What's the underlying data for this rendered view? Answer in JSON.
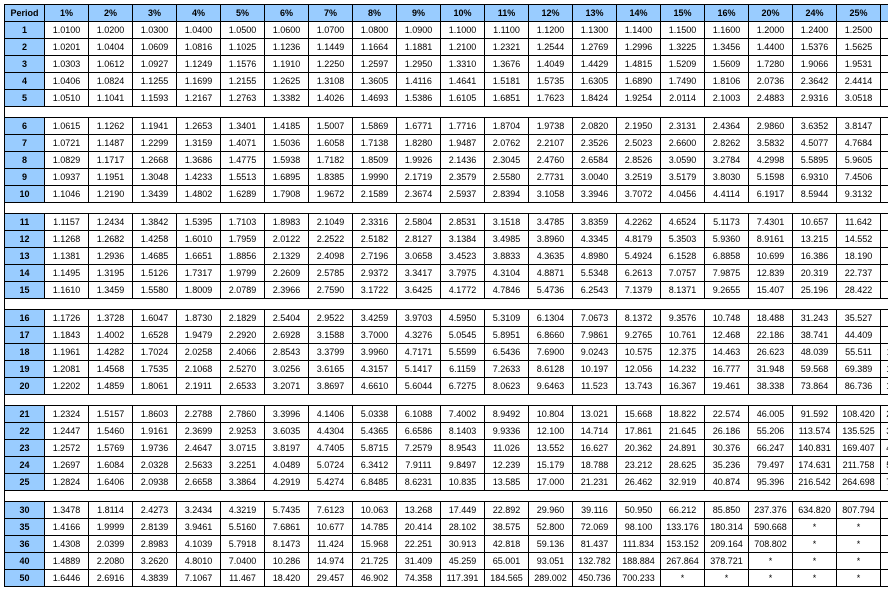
{
  "table": {
    "type": "table",
    "header_bg": "#99ccff",
    "cell_bg": "#ffffff",
    "border_color": "#000000",
    "font_size": 9,
    "period_label": "Period",
    "columns": [
      "1%",
      "2%",
      "3%",
      "4%",
      "5%",
      "6%",
      "7%",
      "8%",
      "9%",
      "10%",
      "11%",
      "12%",
      "13%",
      "14%",
      "15%",
      "16%",
      "20%",
      "24%",
      "25%",
      "30%"
    ],
    "groups": [
      {
        "rows": [
          {
            "p": "1",
            "v": [
              "1.0100",
              "1.0200",
              "1.0300",
              "1.0400",
              "1.0500",
              "1.0600",
              "1.0700",
              "1.0800",
              "1.0900",
              "1.1000",
              "1.1100",
              "1.1200",
              "1.1300",
              "1.1400",
              "1.1500",
              "1.1600",
              "1.2000",
              "1.2400",
              "1.2500",
              "1.3000"
            ]
          },
          {
            "p": "2",
            "v": [
              "1.0201",
              "1.0404",
              "1.0609",
              "1.0816",
              "1.1025",
              "1.1236",
              "1.1449",
              "1.1664",
              "1.1881",
              "1.2100",
              "1.2321",
              "1.2544",
              "1.2769",
              "1.2996",
              "1.3225",
              "1.3456",
              "1.4400",
              "1.5376",
              "1.5625",
              "1.6900"
            ]
          },
          {
            "p": "3",
            "v": [
              "1.0303",
              "1.0612",
              "1.0927",
              "1.1249",
              "1.1576",
              "1.1910",
              "1.2250",
              "1.2597",
              "1.2950",
              "1.3310",
              "1.3676",
              "1.4049",
              "1.4429",
              "1.4815",
              "1.5209",
              "1.5609",
              "1.7280",
              "1.9066",
              "1.9531",
              "2.1970"
            ]
          },
          {
            "p": "4",
            "v": [
              "1.0406",
              "1.0824",
              "1.1255",
              "1.1699",
              "1.2155",
              "1.2625",
              "1.3108",
              "1.3605",
              "1.4116",
              "1.4641",
              "1.5181",
              "1.5735",
              "1.6305",
              "1.6890",
              "1.7490",
              "1.8106",
              "2.0736",
              "2.3642",
              "2.4414",
              "2.8561"
            ]
          },
          {
            "p": "5",
            "v": [
              "1.0510",
              "1.1041",
              "1.1593",
              "1.2167",
              "1.2763",
              "1.3382",
              "1.4026",
              "1.4693",
              "1.5386",
              "1.6105",
              "1.6851",
              "1.7623",
              "1.8424",
              "1.9254",
              "2.0114",
              "2.1003",
              "2.4883",
              "2.9316",
              "3.0518",
              "3.7129"
            ]
          }
        ]
      },
      {
        "rows": [
          {
            "p": "6",
            "v": [
              "1.0615",
              "1.1262",
              "1.1941",
              "1.2653",
              "1.3401",
              "1.4185",
              "1.5007",
              "1.5869",
              "1.6771",
              "1.7716",
              "1.8704",
              "1.9738",
              "2.0820",
              "2.1950",
              "2.3131",
              "2.4364",
              "2.9860",
              "3.6352",
              "3.8147",
              "4.8268"
            ]
          },
          {
            "p": "7",
            "v": [
              "1.0721",
              "1.1487",
              "1.2299",
              "1.3159",
              "1.4071",
              "1.5036",
              "1.6058",
              "1.7138",
              "1.8280",
              "1.9487",
              "2.0762",
              "2.2107",
              "2.3526",
              "2.5023",
              "2.6600",
              "2.8262",
              "3.5832",
              "4.5077",
              "4.7684",
              "6.2749"
            ]
          },
          {
            "p": "8",
            "v": [
              "1.0829",
              "1.1717",
              "1.2668",
              "1.3686",
              "1.4775",
              "1.5938",
              "1.7182",
              "1.8509",
              "1.9926",
              "2.1436",
              "2.3045",
              "2.4760",
              "2.6584",
              "2.8526",
              "3.0590",
              "3.2784",
              "4.2998",
              "5.5895",
              "5.9605",
              "8.1573"
            ]
          },
          {
            "p": "9",
            "v": [
              "1.0937",
              "1.1951",
              "1.3048",
              "1.4233",
              "1.5513",
              "1.6895",
              "1.8385",
              "1.9990",
              "2.1719",
              "2.3579",
              "2.5580",
              "2.7731",
              "3.0040",
              "3.2519",
              "3.5179",
              "3.8030",
              "5.1598",
              "6.9310",
              "7.4506",
              "10.604"
            ]
          },
          {
            "p": "10",
            "v": [
              "1.1046",
              "1.2190",
              "1.3439",
              "1.4802",
              "1.6289",
              "1.7908",
              "1.9672",
              "2.1589",
              "2.3674",
              "2.5937",
              "2.8394",
              "3.1058",
              "3.3946",
              "3.7072",
              "4.0456",
              "4.4114",
              "6.1917",
              "8.5944",
              "9.3132",
              "13.786"
            ]
          }
        ]
      },
      {
        "rows": [
          {
            "p": "11",
            "v": [
              "1.1157",
              "1.2434",
              "1.3842",
              "1.5395",
              "1.7103",
              "1.8983",
              "2.1049",
              "2.3316",
              "2.5804",
              "2.8531",
              "3.1518",
              "3.4785",
              "3.8359",
              "4.2262",
              "4.6524",
              "5.1173",
              "7.4301",
              "10.657",
              "11.642",
              "17.922"
            ]
          },
          {
            "p": "12",
            "v": [
              "1.1268",
              "1.2682",
              "1.4258",
              "1.6010",
              "1.7959",
              "2.0122",
              "2.2522",
              "2.5182",
              "2.8127",
              "3.1384",
              "3.4985",
              "3.8960",
              "4.3345",
              "4.8179",
              "5.3503",
              "5.9360",
              "8.9161",
              "13.215",
              "14.552",
              "23.298"
            ]
          },
          {
            "p": "13",
            "v": [
              "1.1381",
              "1.2936",
              "1.4685",
              "1.6651",
              "1.8856",
              "2.1329",
              "2.4098",
              "2.7196",
              "3.0658",
              "3.4523",
              "3.8833",
              "4.3635",
              "4.8980",
              "5.4924",
              "6.1528",
              "6.8858",
              "10.699",
              "16.386",
              "18.190",
              "30.288"
            ]
          },
          {
            "p": "14",
            "v": [
              "1.1495",
              "1.3195",
              "1.5126",
              "1.7317",
              "1.9799",
              "2.2609",
              "2.5785",
              "2.9372",
              "3.3417",
              "3.7975",
              "4.3104",
              "4.8871",
              "5.5348",
              "6.2613",
              "7.0757",
              "7.9875",
              "12.839",
              "20.319",
              "22.737",
              "39.374"
            ]
          },
          {
            "p": "15",
            "v": [
              "1.1610",
              "1.3459",
              "1.5580",
              "1.8009",
              "2.0789",
              "2.3966",
              "2.7590",
              "3.1722",
              "3.6425",
              "4.1772",
              "4.7846",
              "5.4736",
              "6.2543",
              "7.1379",
              "8.1371",
              "9.2655",
              "15.407",
              "25.196",
              "28.422",
              "51.186"
            ]
          }
        ]
      },
      {
        "rows": [
          {
            "p": "16",
            "v": [
              "1.1726",
              "1.3728",
              "1.6047",
              "1.8730",
              "2.1829",
              "2.5404",
              "2.9522",
              "3.4259",
              "3.9703",
              "4.5950",
              "5.3109",
              "6.1304",
              "7.0673",
              "8.1372",
              "9.3576",
              "10.748",
              "18.488",
              "31.243",
              "35.527",
              "66.542"
            ]
          },
          {
            "p": "17",
            "v": [
              "1.1843",
              "1.4002",
              "1.6528",
              "1.9479",
              "2.2920",
              "2.6928",
              "3.1588",
              "3.7000",
              "4.3276",
              "5.0545",
              "5.8951",
              "6.8660",
              "7.9861",
              "9.2765",
              "10.761",
              "12.468",
              "22.186",
              "38.741",
              "44.409",
              "86.504"
            ]
          },
          {
            "p": "18",
            "v": [
              "1.1961",
              "1.4282",
              "1.7024",
              "2.0258",
              "2.4066",
              "2.8543",
              "3.3799",
              "3.9960",
              "4.7171",
              "5.5599",
              "6.5436",
              "7.6900",
              "9.0243",
              "10.575",
              "12.375",
              "14.463",
              "26.623",
              "48.039",
              "55.511",
              "112.455"
            ]
          },
          {
            "p": "19",
            "v": [
              "1.2081",
              "1.4568",
              "1.7535",
              "2.1068",
              "2.5270",
              "3.0256",
              "3.6165",
              "4.3157",
              "5.1417",
              "6.1159",
              "7.2633",
              "8.6128",
              "10.197",
              "12.056",
              "14.232",
              "16.777",
              "31.948",
              "59.568",
              "69.389",
              "146.192"
            ]
          },
          {
            "p": "20",
            "v": [
              "1.2202",
              "1.4859",
              "1.8061",
              "2.1911",
              "2.6533",
              "3.2071",
              "3.8697",
              "4.6610",
              "5.6044",
              "6.7275",
              "8.0623",
              "9.6463",
              "11.523",
              "13.743",
              "16.367",
              "19.461",
              "38.338",
              "73.864",
              "86.736",
              "190.050"
            ]
          }
        ]
      },
      {
        "rows": [
          {
            "p": "21",
            "v": [
              "1.2324",
              "1.5157",
              "1.8603",
              "2.2788",
              "2.7860",
              "3.3996",
              "4.1406",
              "5.0338",
              "6.1088",
              "7.4002",
              "8.9492",
              "10.804",
              "13.021",
              "15.668",
              "18.822",
              "22.574",
              "46.005",
              "91.592",
              "108.420",
              "247.065"
            ]
          },
          {
            "p": "22",
            "v": [
              "1.2447",
              "1.5460",
              "1.9161",
              "2.3699",
              "2.9253",
              "3.6035",
              "4.4304",
              "5.4365",
              "6.6586",
              "8.1403",
              "9.9336",
              "12.100",
              "14.714",
              "17.861",
              "21.645",
              "26.186",
              "55.206",
              "113.574",
              "135.525",
              "321.184"
            ]
          },
          {
            "p": "23",
            "v": [
              "1.2572",
              "1.5769",
              "1.9736",
              "2.4647",
              "3.0715",
              "3.8197",
              "4.7405",
              "5.8715",
              "7.2579",
              "8.9543",
              "11.026",
              "13.552",
              "16.627",
              "20.362",
              "24.891",
              "30.376",
              "66.247",
              "140.831",
              "169.407",
              "417.539"
            ]
          },
          {
            "p": "24",
            "v": [
              "1.2697",
              "1.6084",
              "2.0328",
              "2.5633",
              "3.2251",
              "4.0489",
              "5.0724",
              "6.3412",
              "7.9111",
              "9.8497",
              "12.239",
              "15.179",
              "18.788",
              "23.212",
              "28.625",
              "35.236",
              "79.497",
              "174.631",
              "211.758",
              "542.801"
            ]
          },
          {
            "p": "25",
            "v": [
              "1.2824",
              "1.6406",
              "2.0938",
              "2.6658",
              "3.3864",
              "4.2919",
              "5.4274",
              "6.8485",
              "8.6231",
              "10.835",
              "13.585",
              "17.000",
              "21.231",
              "26.462",
              "32.919",
              "40.874",
              "95.396",
              "216.542",
              "264.698",
              "705.641"
            ]
          }
        ]
      },
      {
        "rows": [
          {
            "p": "30",
            "v": [
              "1.3478",
              "1.8114",
              "2.4273",
              "3.2434",
              "4.3219",
              "5.7435",
              "7.6123",
              "10.063",
              "13.268",
              "17.449",
              "22.892",
              "29.960",
              "39.116",
              "50.950",
              "66.212",
              "85.850",
              "237.376",
              "634.820",
              "807.794",
              "*"
            ]
          },
          {
            "p": "35",
            "v": [
              "1.4166",
              "1.9999",
              "2.8139",
              "3.9461",
              "5.5160",
              "7.6861",
              "10.677",
              "14.785",
              "20.414",
              "28.102",
              "38.575",
              "52.800",
              "72.069",
              "98.100",
              "133.176",
              "180.314",
              "590.668",
              "*",
              "*",
              "*"
            ]
          },
          {
            "p": "36",
            "v": [
              "1.4308",
              "2.0399",
              "2.8983",
              "4.1039",
              "5.7918",
              "8.1473",
              "11.424",
              "15.968",
              "22.251",
              "30.913",
              "42.818",
              "59.136",
              "81.437",
              "111.834",
              "153.152",
              "209.164",
              "708.802",
              "*",
              "*",
              "*"
            ]
          },
          {
            "p": "40",
            "v": [
              "1.4889",
              "2.2080",
              "3.2620",
              "4.8010",
              "7.0400",
              "10.286",
              "14.974",
              "21.725",
              "31.409",
              "45.259",
              "65.001",
              "93.051",
              "132.782",
              "188.884",
              "267.864",
              "378.721",
              "*",
              "*",
              "*",
              "*"
            ]
          },
          {
            "p": "50",
            "v": [
              "1.6446",
              "2.6916",
              "4.3839",
              "7.1067",
              "11.467",
              "18.420",
              "29.457",
              "46.902",
              "74.358",
              "117.391",
              "184.565",
              "289.002",
              "450.736",
              "700.233",
              "*",
              "*",
              "*",
              "*",
              "*",
              "*"
            ]
          }
        ]
      }
    ]
  }
}
